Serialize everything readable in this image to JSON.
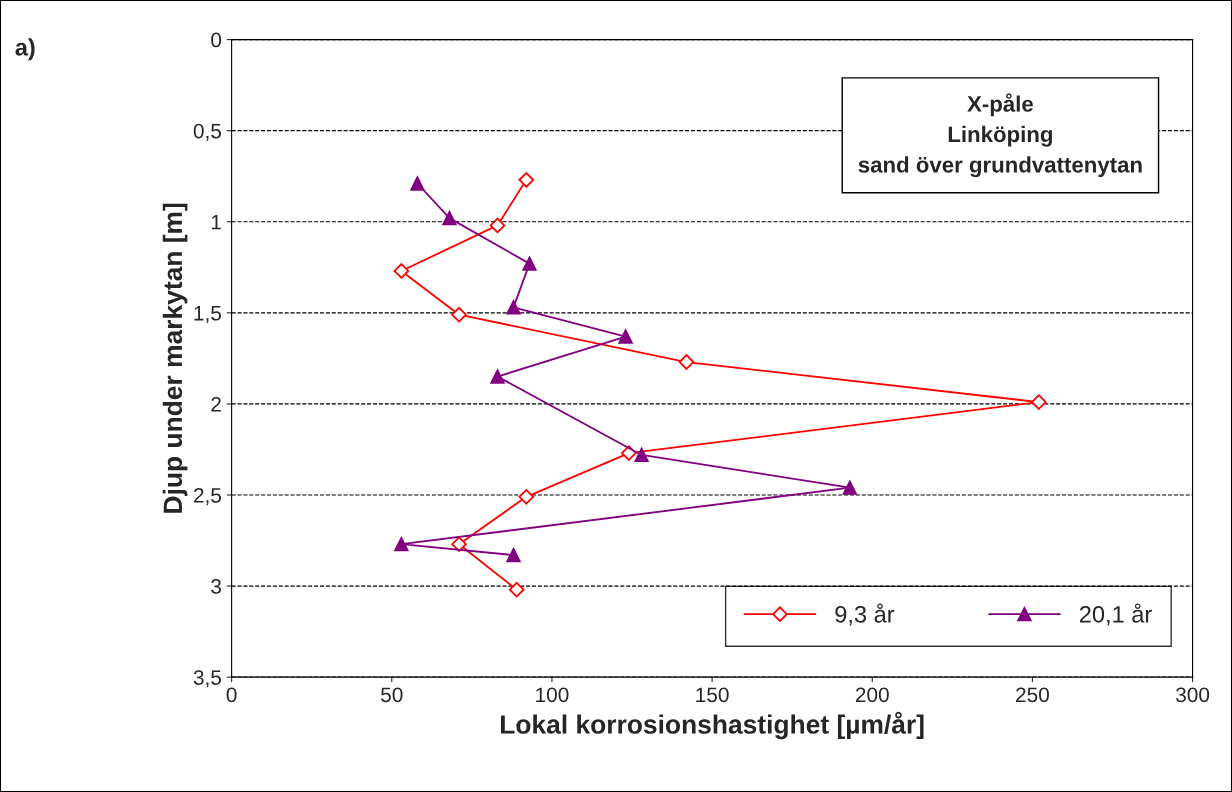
{
  "chart_data": {
    "type": "line",
    "xlabel": "Lokal korrosionshastighet [µm/år]",
    "ylabel": "Djup under markytan [m]",
    "annotations": [
      "a)",
      "X-påle\nLinköping\nsand över grundvattenytan"
    ],
    "series": [
      {
        "name": "9,3 år",
        "color": "#ff0000",
        "marker": "diamond",
        "x": [
          92,
          83,
          53,
          71,
          142,
          252,
          124,
          92,
          71,
          89
        ],
        "values": [
          0.77,
          1.02,
          1.27,
          1.51,
          1.77,
          1.99,
          2.27,
          2.51,
          2.77,
          3.02
        ]
      },
      {
        "name": "20,1 år",
        "color": "#800080",
        "marker": "triangle",
        "x": [
          58,
          68,
          93,
          88,
          123,
          83,
          128,
          193,
          53,
          88
        ],
        "values": [
          0.79,
          0.98,
          1.23,
          1.47,
          1.63,
          1.85,
          2.28,
          2.46,
          2.77,
          2.83
        ]
      }
    ],
    "xlim": [
      0,
      300
    ],
    "xticks": [
      0,
      50,
      100,
      150,
      200,
      250,
      300
    ],
    "ylim": [
      3.5,
      0
    ],
    "yticks": [
      {
        "value": 0,
        "label": "0"
      },
      {
        "value": 0.5,
        "label": "0,5"
      },
      {
        "value": 1,
        "label": "1"
      },
      {
        "value": 1.5,
        "label": "1,5"
      },
      {
        "value": 2,
        "label": "2"
      },
      {
        "value": 2.5,
        "label": "2,5"
      },
      {
        "value": 3,
        "label": "3"
      },
      {
        "value": 3.5,
        "label": "3,5"
      }
    ],
    "grid": "y",
    "legend": "bottom right",
    "line_style": "solid"
  }
}
